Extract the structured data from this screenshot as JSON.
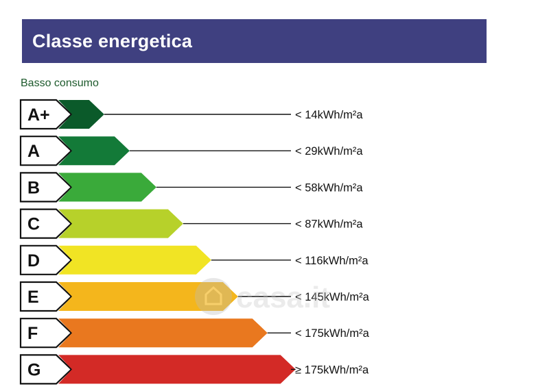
{
  "header": {
    "title": "Classe energetica"
  },
  "subtitle": "Basso consumo",
  "watermark": {
    "text": "casa.it",
    "icon": "house-icon"
  },
  "colors": {
    "header_bg": "#3f4080",
    "subtitle_text": "#1d5a2c"
  },
  "classes": [
    {
      "label": "A+",
      "threshold": "<  14kWh/m²a",
      "color": "#0b5a2a",
      "bar_fraction": 0.115
    },
    {
      "label": "A",
      "threshold": "<  29kWh/m²a",
      "color": "#137a38",
      "bar_fraction": 0.21
    },
    {
      "label": "B",
      "threshold": "<  58kWh/m²a",
      "color": "#3aaa3a",
      "bar_fraction": 0.31
    },
    {
      "label": "C",
      "threshold": "<  87kWh/m²a",
      "color": "#b7d12a",
      "bar_fraction": 0.41
    },
    {
      "label": "D",
      "threshold": "< 116kWh/m²a",
      "color": "#f1e424",
      "bar_fraction": 0.515
    },
    {
      "label": "E",
      "threshold": "< 145kWh/m²a",
      "color": "#f4b61c",
      "bar_fraction": 0.615
    },
    {
      "label": "F",
      "threshold": "< 175kWh/m²a",
      "color": "#e9781f",
      "bar_fraction": 0.725
    },
    {
      "label": "G",
      "threshold": "≥ 175kWh/m²a",
      "color": "#d32a26",
      "bar_fraction": 0.83
    }
  ]
}
